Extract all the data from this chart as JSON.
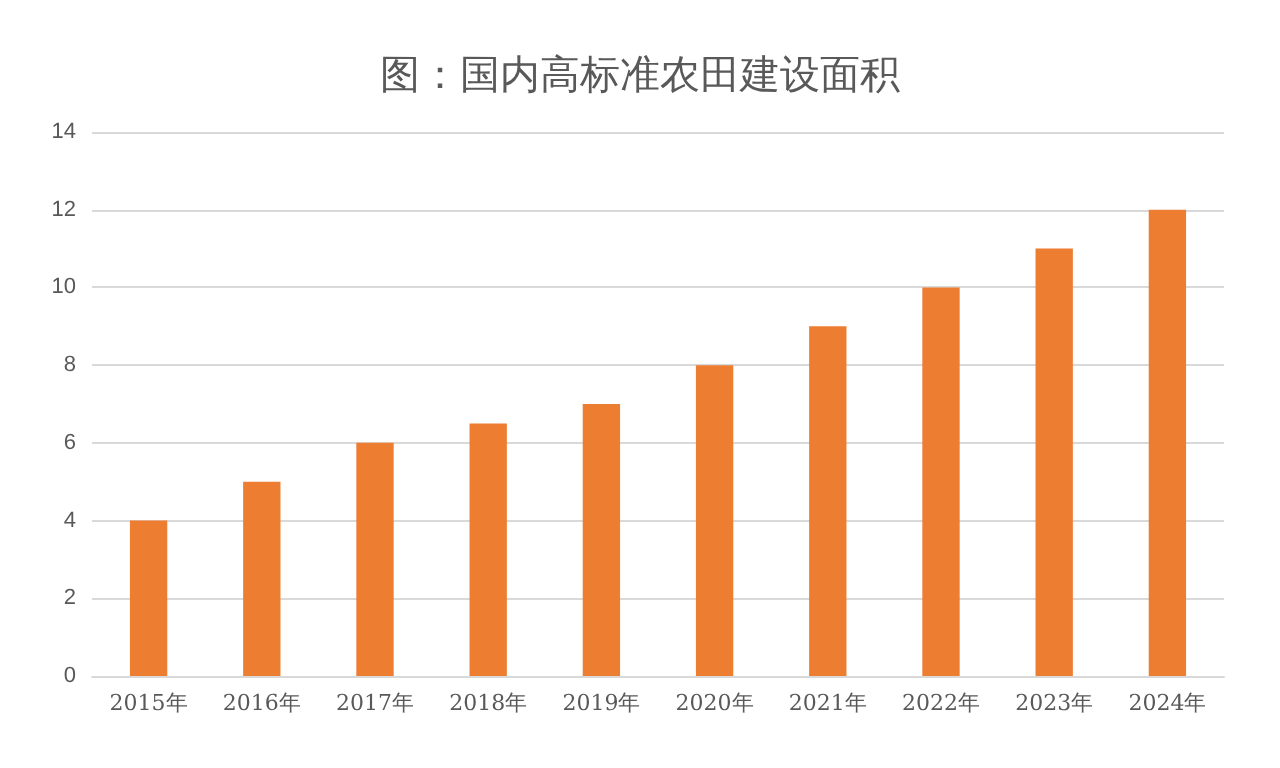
{
  "chart_data": {
    "type": "bar",
    "title": "图：国内高标准农田建设面积",
    "categories": [
      "2015年",
      "2016年",
      "2017年",
      "2018年",
      "2019年",
      "2020年",
      "2021年",
      "2022年",
      "2023年",
      "2024年"
    ],
    "values": [
      4,
      5,
      6,
      6.5,
      7,
      8,
      9,
      10,
      11,
      12
    ],
    "color": "#ed7d31",
    "ylim": [
      0,
      14
    ],
    "yticks": [
      0,
      2,
      4,
      6,
      8,
      10,
      12,
      14
    ],
    "grid": "y"
  }
}
